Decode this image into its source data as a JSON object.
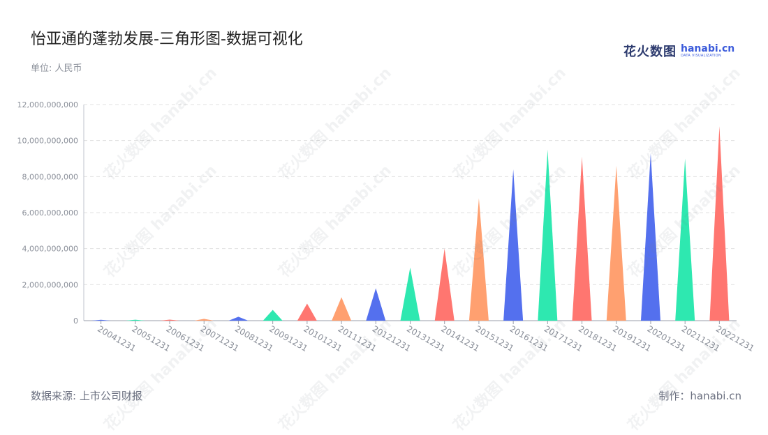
{
  "title": "怡亚通的蓬勃发展-三角形图-数据可视化",
  "unit_label": "单位: 人民币",
  "logo": {
    "cn": "花火数图",
    "en": "hanabi.cn",
    "sub": "DATA VISUALIZATION"
  },
  "source": "数据来源: 上市公司财报",
  "maker": "制作：hanabi.cn",
  "watermark_text": "花火数图 hanabi.cn",
  "colors": [
    "#5470ee",
    "#2ee8b0",
    "#ff7670",
    "#ffa070"
  ],
  "chart_data": {
    "type": "bar",
    "categories": [
      "20041231",
      "20051231",
      "20061231",
      "20071231",
      "20081231",
      "20091231",
      "20101231",
      "20111231",
      "20121231",
      "20131231",
      "20141231",
      "20151231",
      "20161231",
      "20171231",
      "20181231",
      "20191231",
      "20201231",
      "20211231",
      "20221231"
    ],
    "values": [
      50000000,
      55000000,
      60000000,
      100000000,
      220000000,
      600000000,
      950000000,
      1300000000,
      1800000000,
      2950000000,
      4000000000,
      6800000000,
      8400000000,
      9500000000,
      9100000000,
      8600000000,
      9300000000,
      9000000000,
      10800000000
    ],
    "series_colors_cycle": [
      "#5470ee",
      "#2ee8b0",
      "#ff7670",
      "#ffa070"
    ],
    "ylim": [
      0,
      12000000000
    ],
    "yticks": [
      "0",
      "2,000,000,000",
      "4,000,000,000",
      "6,000,000,000",
      "8,000,000,000",
      "10,000,000,000",
      "12,000,000,000"
    ],
    "ytick_values": [
      0,
      2000000000,
      4000000000,
      6000000000,
      8000000000,
      10000000000,
      12000000000
    ],
    "grid": true,
    "mark_shape": "triangle"
  }
}
